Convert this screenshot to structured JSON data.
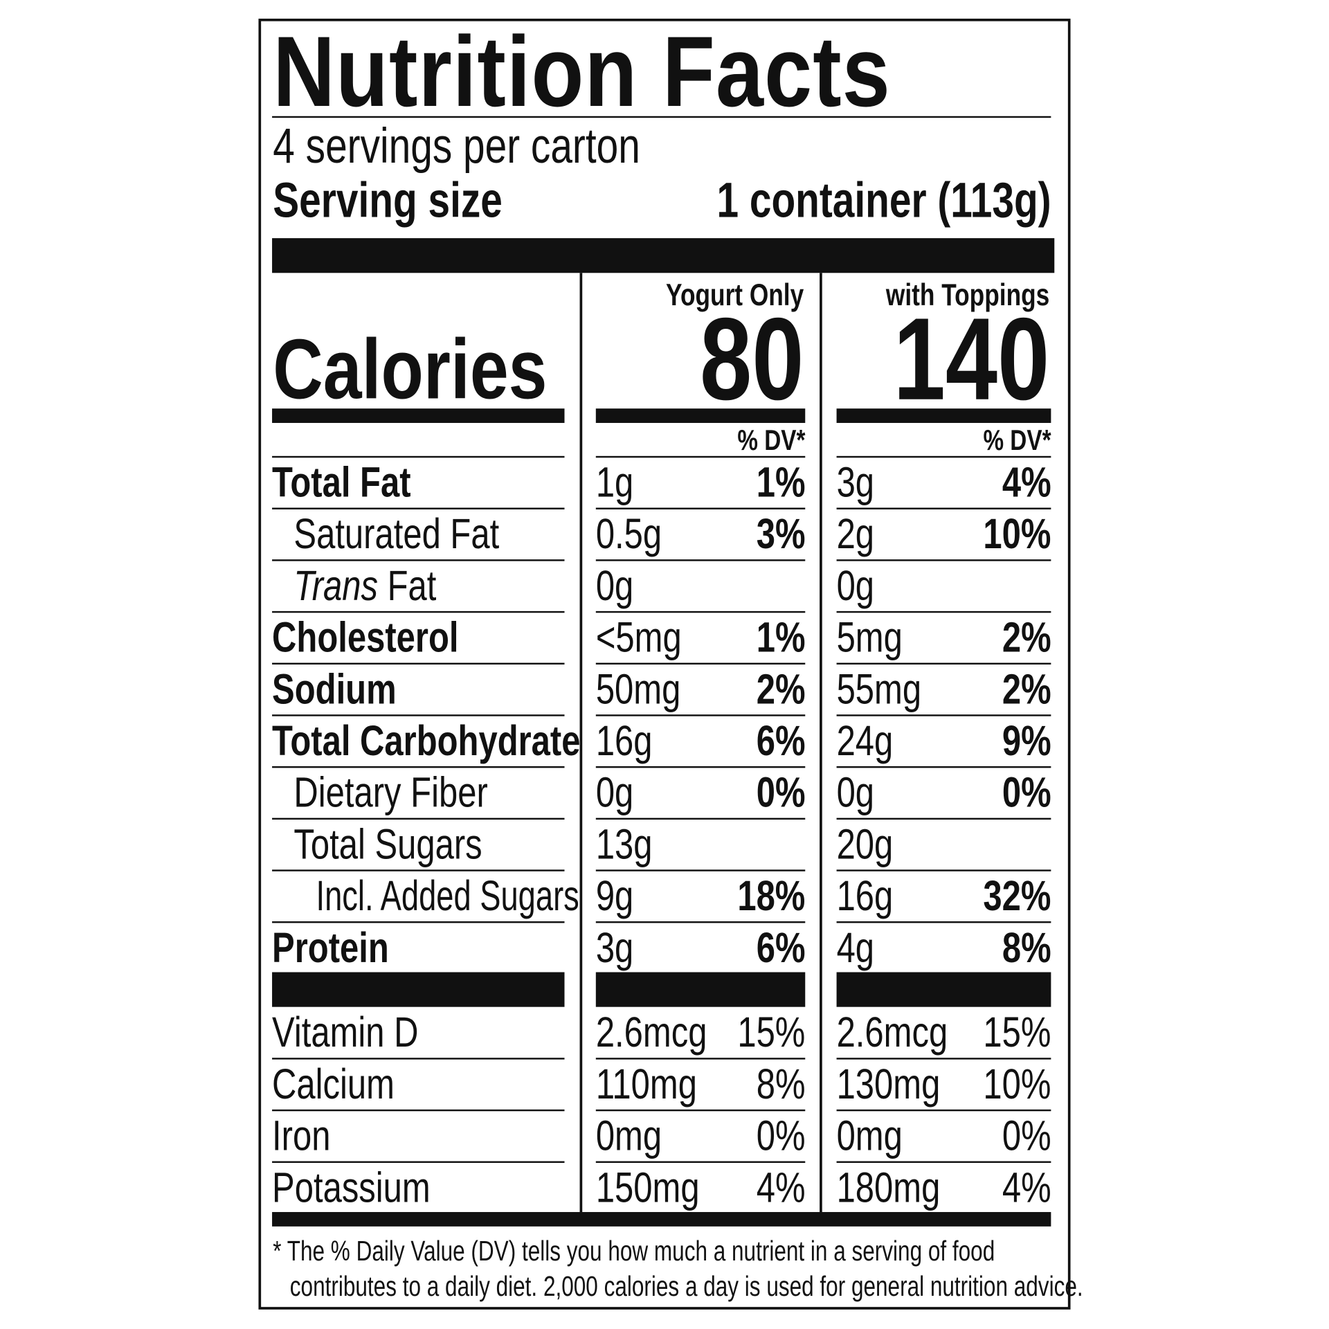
{
  "title": "Nutrition Facts",
  "servings_per_container": "4 servings per carton",
  "serving_size_label": "Serving size",
  "serving_size_value": "1 container (113g)",
  "calories_label": "Calories",
  "columns": [
    {
      "header": "Yogurt Only",
      "calories": "80",
      "dv_header": "% DV*"
    },
    {
      "header": "with Toppings",
      "calories": "140",
      "dv_header": "% DV*"
    }
  ],
  "nutrients": [
    {
      "label": "Total Fat",
      "bold": true,
      "indent": 0,
      "values": [
        [
          "1g",
          "1%"
        ],
        [
          "3g",
          "4%"
        ]
      ]
    },
    {
      "label": "Saturated Fat",
      "bold": false,
      "indent": 1,
      "values": [
        [
          "0.5g",
          "3%"
        ],
        [
          "2g",
          "10%"
        ]
      ]
    },
    {
      "label_italic": "Trans",
      "label": " Fat",
      "bold": false,
      "indent": 1,
      "values": [
        [
          "0g",
          ""
        ],
        [
          "0g",
          ""
        ]
      ]
    },
    {
      "label": "Cholesterol",
      "bold": true,
      "indent": 0,
      "values": [
        [
          "<5mg",
          "1%"
        ],
        [
          "5mg",
          "2%"
        ]
      ]
    },
    {
      "label": "Sodium",
      "bold": true,
      "indent": 0,
      "values": [
        [
          "50mg",
          "2%"
        ],
        [
          "55mg",
          "2%"
        ]
      ]
    },
    {
      "label": "Total Carbohydrate",
      "bold": true,
      "indent": 0,
      "values": [
        [
          "16g",
          "6%"
        ],
        [
          "24g",
          "9%"
        ]
      ]
    },
    {
      "label": "Dietary Fiber",
      "bold": false,
      "indent": 1,
      "values": [
        [
          "0g",
          "0%"
        ],
        [
          "0g",
          "0%"
        ]
      ]
    },
    {
      "label": "Total Sugars",
      "bold": false,
      "indent": 1,
      "values": [
        [
          "13g",
          ""
        ],
        [
          "20g",
          ""
        ]
      ]
    },
    {
      "label": "Incl. Added Sugars",
      "bold": false,
      "indent": 2,
      "values": [
        [
          "9g",
          "18%"
        ],
        [
          "16g",
          "32%"
        ]
      ]
    },
    {
      "label": "Protein",
      "bold": true,
      "indent": 0,
      "values": [
        [
          "3g",
          "6%"
        ],
        [
          "4g",
          "8%"
        ]
      ]
    }
  ],
  "micronutrients": [
    {
      "label": "Vitamin D",
      "values": [
        [
          "2.6mcg",
          "15%"
        ],
        [
          "2.6mcg",
          "15%"
        ]
      ]
    },
    {
      "label": "Calcium",
      "values": [
        [
          "110mg",
          "8%"
        ],
        [
          "130mg",
          "10%"
        ]
      ]
    },
    {
      "label": "Iron",
      "values": [
        [
          "0mg",
          "0%"
        ],
        [
          "0mg",
          "0%"
        ]
      ]
    },
    {
      "label": "Potassium",
      "values": [
        [
          "150mg",
          "4%"
        ],
        [
          "180mg",
          "4%"
        ]
      ]
    }
  ],
  "footnote_line1": "* The % Daily Value (DV) tells you how much a nutrient in a serving of food",
  "footnote_line2": "contributes to a daily diet. 2,000 calories a day is used for general nutrition advice."
}
